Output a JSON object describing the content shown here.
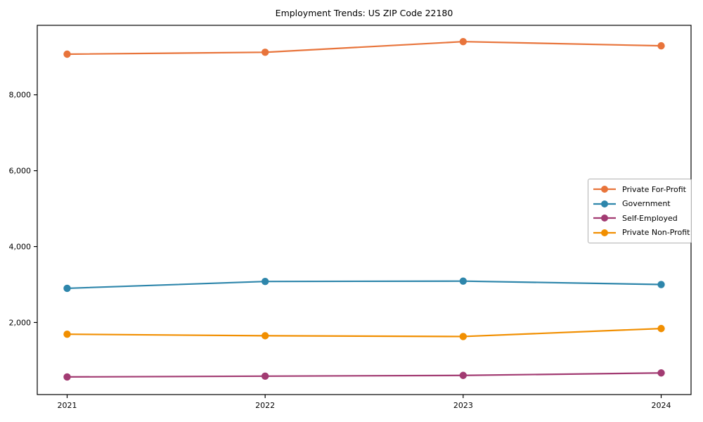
{
  "figure": {
    "title": "Employment Trends: US ZIP Code 22180",
    "background_color": "#ffffff",
    "axis_color": "#000000",
    "text_color": "#000000"
  },
  "chart_data": {
    "type": "line",
    "title": "Employment Trends: US ZIP Code 22180",
    "xlabel": "",
    "ylabel": "",
    "x": [
      2021,
      2022,
      2023,
      2024
    ],
    "x_tick_labels": [
      "2021",
      "2022",
      "2023",
      "2024"
    ],
    "series": [
      {
        "name": "Private For-Profit",
        "color": "#e8743b",
        "values": [
          9070,
          9120,
          9400,
          9290
        ]
      },
      {
        "name": "Government",
        "color": "#2e86ab",
        "values": [
          2900,
          3080,
          3090,
          3000
        ]
      },
      {
        "name": "Self-Employed",
        "color": "#a23b72",
        "values": [
          565,
          585,
          605,
          670
        ]
      },
      {
        "name": "Private Non-Profit",
        "color": "#f18f01",
        "values": [
          1690,
          1650,
          1630,
          1840
        ]
      }
    ],
    "ylim": [
      100,
      9830
    ],
    "yticks": [
      2000,
      4000,
      6000,
      8000
    ],
    "ytick_labels": [
      "2,000",
      "4,000",
      "6,000",
      "8,000"
    ],
    "grid": false,
    "marker": "circle",
    "legend_position": "center right"
  }
}
